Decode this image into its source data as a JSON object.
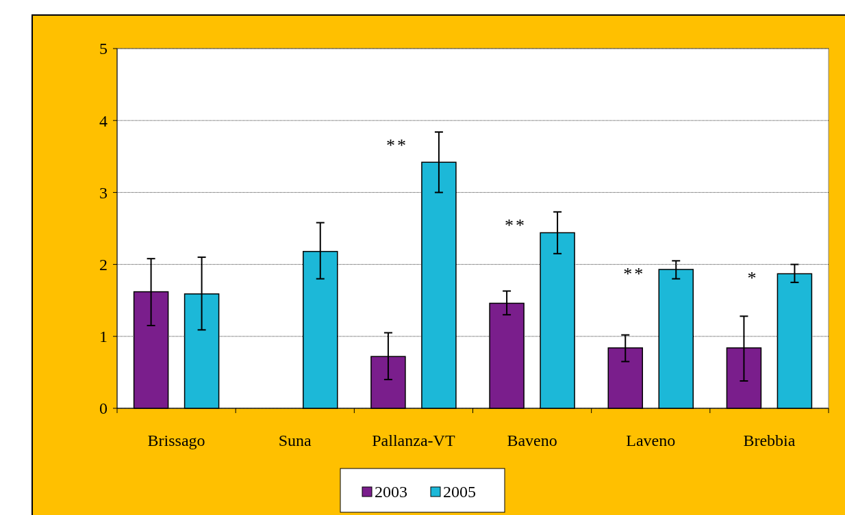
{
  "chart_data": {
    "type": "bar",
    "categories": [
      "Brissago",
      "Suna",
      "Pallanza-VT",
      "Baveno",
      "Laveno",
      "Brebbia"
    ],
    "series": [
      {
        "name": "2003",
        "color": "#7a1e8c",
        "values": [
          1.62,
          null,
          0.72,
          1.46,
          0.84,
          0.84
        ],
        "errors": [
          [
            1.15,
            2.08
          ],
          null,
          [
            0.4,
            1.05
          ],
          [
            1.3,
            1.63
          ],
          [
            0.65,
            1.02
          ],
          [
            0.38,
            1.28
          ]
        ]
      },
      {
        "name": "2005",
        "color": "#1cb8d8",
        "values": [
          1.59,
          2.18,
          3.42,
          2.44,
          1.93,
          1.87
        ],
        "errors": [
          [
            1.09,
            2.1
          ],
          [
            1.8,
            2.58
          ],
          [
            3.0,
            3.84
          ],
          [
            2.15,
            2.73
          ],
          [
            1.8,
            2.05
          ],
          [
            1.75,
            2.0
          ]
        ]
      }
    ],
    "ylim": [
      0,
      5
    ],
    "yticks": [
      0,
      1,
      2,
      3,
      4,
      5
    ],
    "grid": "y",
    "legend": "bottom",
    "annotations": [
      "**",
      "**",
      "**",
      "*"
    ]
  }
}
